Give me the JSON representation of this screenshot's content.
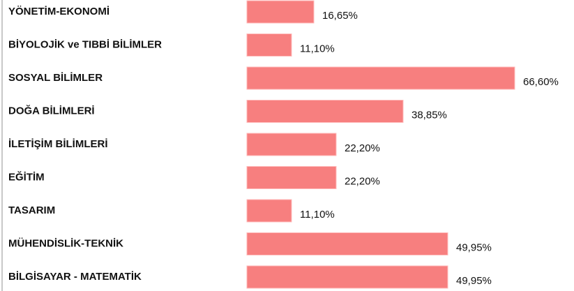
{
  "chart_data": {
    "type": "bar",
    "orientation": "horizontal",
    "categories": [
      "YÖNETİM-EKONOMİ",
      "BİYOLOJİK ve TIBBİ BİLİMLER",
      "SOSYAL BİLİMLER",
      "DOĞA BİLİMLERİ",
      "İLETİŞİM BİLİMLERİ",
      "EĞİTİM",
      "TASARIM",
      "MÜHENDİSLİK-TEKNİK",
      "BİLGİSAYAR - MATEMATİK"
    ],
    "values": [
      16.65,
      11.1,
      66.6,
      38.85,
      22.2,
      22.2,
      11.1,
      49.95,
      49.95
    ],
    "value_labels": [
      "16,65%",
      "11,10%",
      "66,60%",
      "38,85%",
      "22,20%",
      "22,20%",
      "11,10%",
      "49,95%",
      "49,95%"
    ],
    "color": "#f77f7f"
  }
}
